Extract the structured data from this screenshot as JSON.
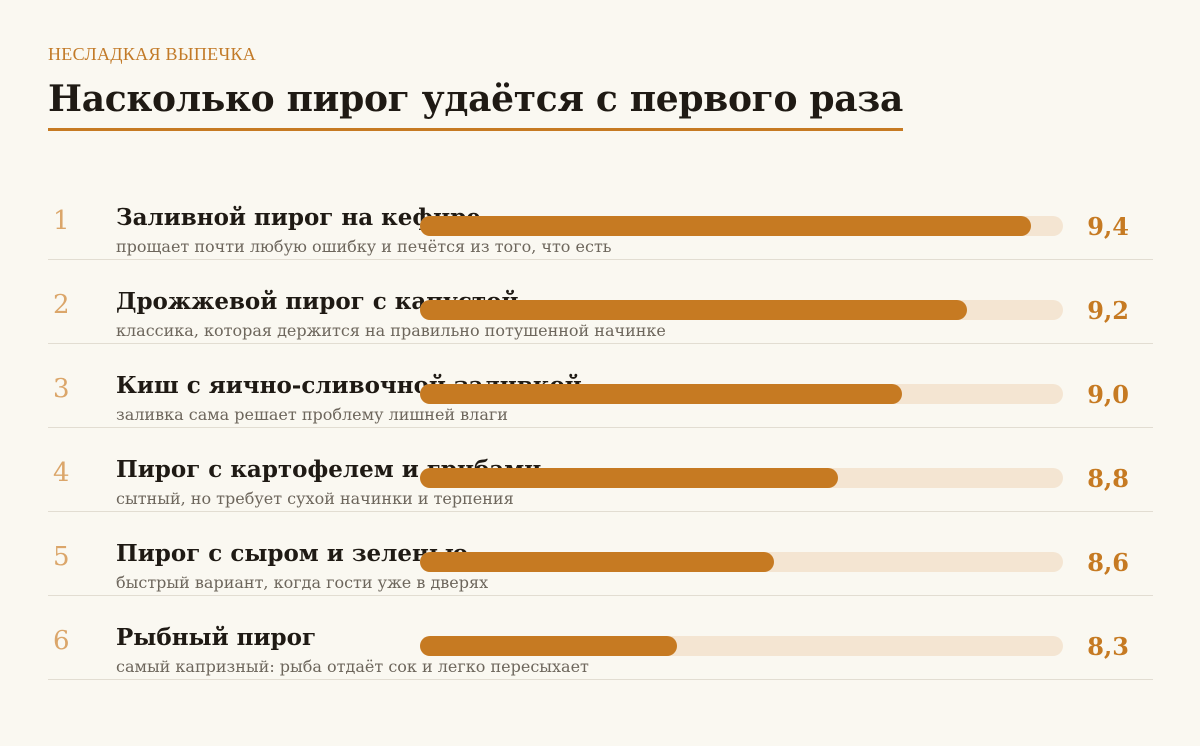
{
  "header": {
    "kicker": "НЕСЛАДКАЯ ВЫПЕЧКА",
    "title": "Насколько пирог удаётся с первого раза"
  },
  "colors": {
    "accent": "#c67a22",
    "track": "#f4e5d2",
    "rank": "#dba66a",
    "background": "#faf8f1"
  },
  "chart_data": {
    "type": "bar",
    "orientation": "horizontal",
    "xlim": [
      7.5,
      9.5
    ],
    "categories": [
      "Заливной пирог на кефире",
      "Дрожжевой пирог с капустой",
      "Киш с яично-сливочной заливкой",
      "Пирог с картофелем и грибами",
      "Пирог с сыром и зеленью",
      "Рыбный пирог"
    ],
    "values": [
      9.4,
      9.2,
      9.0,
      8.8,
      8.6,
      8.3
    ],
    "rows": [
      {
        "rank": "1",
        "label": "Заливной пирог на кефире",
        "desc": "прощает почти любую ошибку и печётся из того, что есть",
        "value": 9.4,
        "value_label": "9,4"
      },
      {
        "rank": "2",
        "label": "Дрожжевой пирог с капустой",
        "desc": "классика, которая держится на правильно потушенной начинке",
        "value": 9.2,
        "value_label": "9,2"
      },
      {
        "rank": "3",
        "label": "Киш с яично-сливочной заливкой",
        "desc": "заливка сама решает проблему лишней влаги",
        "value": 9.0,
        "value_label": "9,0"
      },
      {
        "rank": "4",
        "label": "Пирог с картофелем и грибами",
        "desc": "сытный, но требует сухой начинки и терпения",
        "value": 8.8,
        "value_label": "8,8"
      },
      {
        "rank": "5",
        "label": "Пирог с сыром и зеленью",
        "desc": "быстрый вариант, когда гости уже в дверях",
        "value": 8.6,
        "value_label": "8,6"
      },
      {
        "rank": "6",
        "label": "Рыбный пирог",
        "desc": "самый капризный: рыба отдаёт сок и легко пересыхает",
        "value": 8.3,
        "value_label": "8,3"
      }
    ]
  }
}
